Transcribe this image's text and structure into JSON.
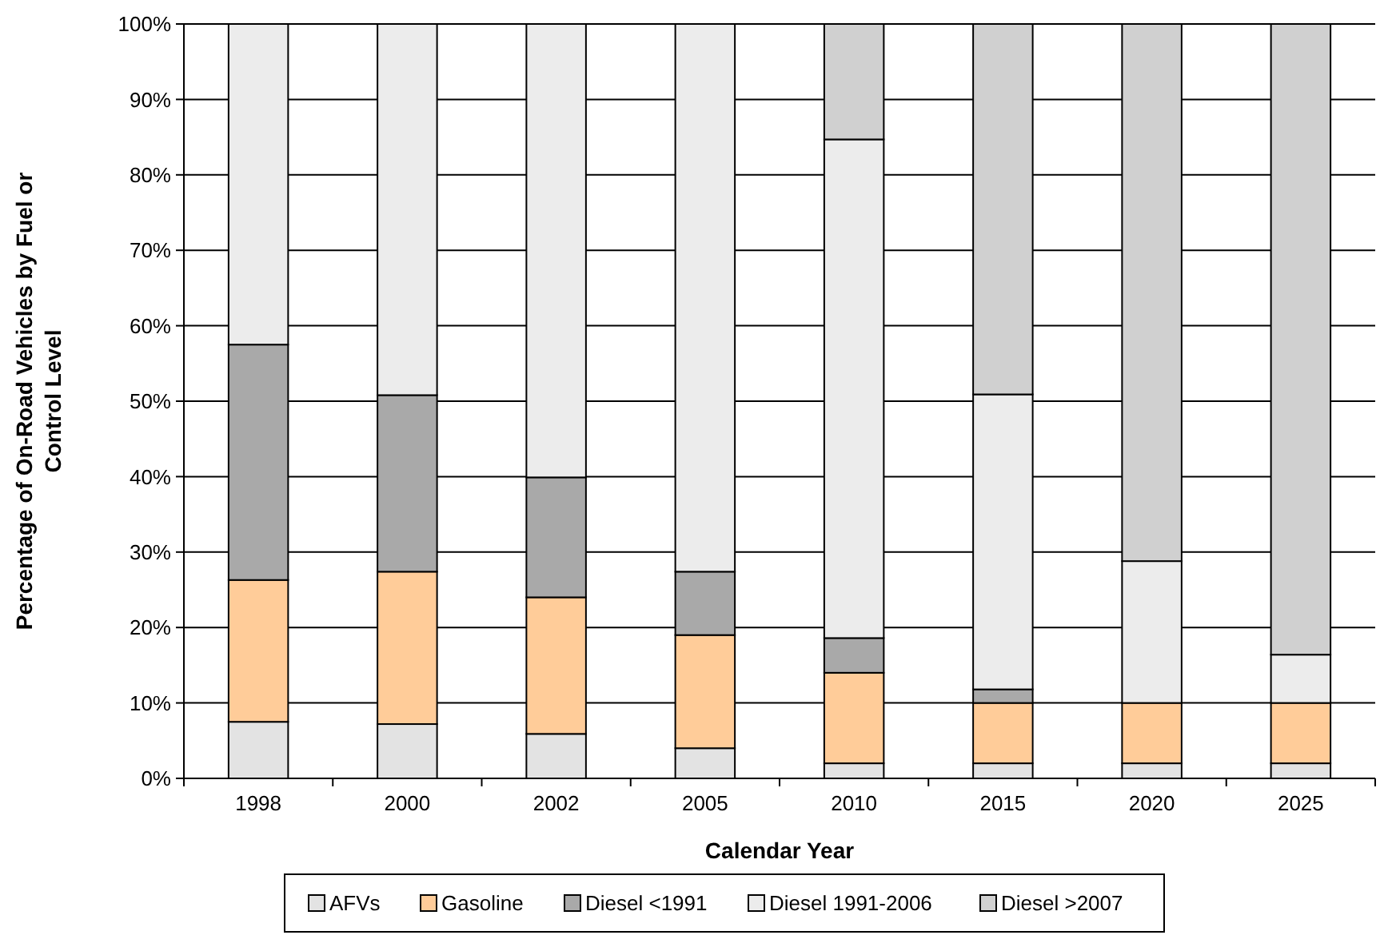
{
  "chart_data": {
    "type": "bar",
    "stacked": true,
    "xlabel": "Calendar Year",
    "ylabel": "Percentage of On-Road Vehicles by Fuel or Control Level",
    "categories": [
      "1998",
      "2000",
      "2002",
      "2005",
      "2010",
      "2015",
      "2020",
      "2025"
    ],
    "series": [
      {
        "name": "AFVs",
        "color": "#e3e3e3",
        "values": [
          7.5,
          7.2,
          5.9,
          4.0,
          2.0,
          2.0,
          2.0,
          2.0
        ]
      },
      {
        "name": "Gasoline",
        "color": "#ffcc99",
        "values": [
          18.8,
          20.2,
          18.1,
          15.0,
          12.0,
          8.0,
          8.0,
          8.0
        ]
      },
      {
        "name": "Diesel <1991",
        "color": "#a9a9a9",
        "values": [
          31.2,
          23.4,
          15.9,
          8.4,
          4.6,
          1.8,
          0,
          0
        ]
      },
      {
        "name": "Diesel 1991-2006",
        "color": "#ececec",
        "values": [
          42.5,
          49.2,
          60.1,
          72.6,
          66.1,
          39.1,
          18.8,
          6.4
        ]
      },
      {
        "name": "Diesel >2007",
        "color": "#d0d0d0",
        "values": [
          0,
          0,
          0,
          0,
          15.3,
          49.1,
          71.2,
          83.6
        ]
      }
    ],
    "ylim": [
      0,
      100
    ],
    "yticks": [
      {
        "value": 0,
        "label": "0%"
      },
      {
        "value": 10,
        "label": "10%"
      },
      {
        "value": 20,
        "label": "20%"
      },
      {
        "value": 30,
        "label": "30%"
      },
      {
        "value": 40,
        "label": "40%"
      },
      {
        "value": 50,
        "label": "50%"
      },
      {
        "value": 60,
        "label": "60%"
      },
      {
        "value": 70,
        "label": "70%"
      },
      {
        "value": 80,
        "label": "80%"
      },
      {
        "value": 90,
        "label": "90%"
      },
      {
        "value": 100,
        "label": "100%"
      }
    ],
    "grid": "y",
    "legend": "bottom"
  }
}
